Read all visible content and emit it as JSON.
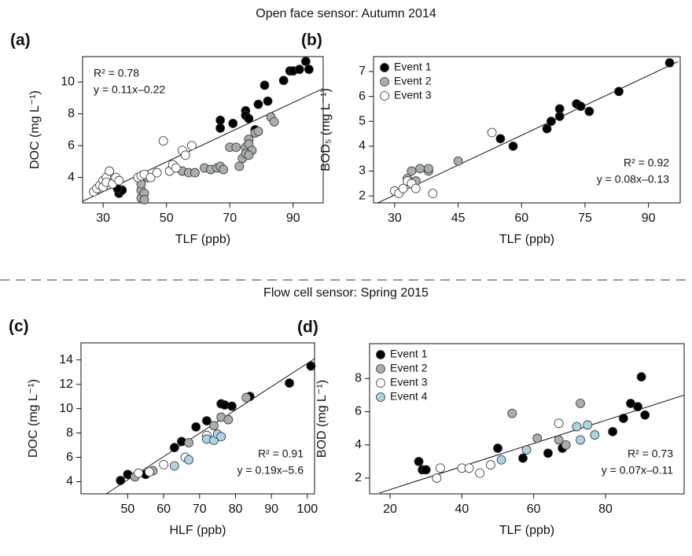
{
  "sections": [
    {
      "title": "Open face sensor: Autumn 2014"
    },
    {
      "title": "Flow cell sensor: Spring 2015"
    }
  ],
  "chart_data": [
    {
      "type": "scatter",
      "panel_label": "(a)",
      "xlabel": "TLF (ppb)",
      "ylabel": "DOC (mg L⁻¹)",
      "xlim": [
        23.5,
        99.5
      ],
      "ylim": [
        2.4,
        11.6
      ],
      "xticks": [
        30,
        50,
        70,
        90
      ],
      "yticks": [
        4,
        6,
        8,
        10
      ],
      "annotations": [
        "R² = 0.78",
        "y = 0.11x–0.22"
      ],
      "fit": {
        "x": [
          23.5,
          99.5
        ],
        "y": [
          2.5,
          9.6
        ]
      },
      "series": [
        {
          "color": "#000000",
          "x": [
            35,
            35,
            36,
            34.5,
            67,
            67,
            71,
            75,
            75,
            76,
            78,
            79,
            81,
            82,
            87,
            89,
            90,
            92,
            94,
            95
          ],
          "values": [
            3.1,
            3.0,
            3.2,
            3.3,
            7.1,
            7.6,
            7.4,
            8.2,
            7.9,
            7.7,
            7.0,
            8.6,
            9.8,
            8.8,
            10.1,
            10.7,
            10.7,
            10.8,
            11.3,
            10.8
          ]
        },
        {
          "color": "#a8aeaa",
          "x": [
            42,
            42,
            43,
            43,
            42,
            44,
            52,
            55,
            57,
            59,
            62,
            64,
            66,
            67,
            68,
            70,
            72,
            73,
            74,
            75,
            76,
            76,
            77,
            78,
            79,
            83,
            84,
            75,
            76
          ],
          "values": [
            2.7,
            3.2,
            3.0,
            2.6,
            3.6,
            4.0,
            4.6,
            4.4,
            4.3,
            4.3,
            4.6,
            4.5,
            4.6,
            4.7,
            4.5,
            5.9,
            5.9,
            4.7,
            5.2,
            5.9,
            6.4,
            6.1,
            5.7,
            6.8,
            6.9,
            7.8,
            7.5,
            5.5,
            5.4
          ]
        },
        {
          "color": "#ffffff",
          "x": [
            27,
            28,
            29,
            30,
            30,
            31,
            31,
            32,
            33,
            34,
            35,
            41,
            42,
            43,
            45,
            47,
            49,
            51,
            52,
            53,
            55,
            56,
            58
          ],
          "values": [
            3.1,
            3.3,
            3.5,
            3.8,
            3.4,
            4.0,
            3.7,
            4.4,
            3.6,
            4.0,
            3.8,
            4.0,
            4.1,
            4.2,
            4.0,
            4.3,
            6.3,
            4.4,
            4.8,
            4.6,
            5.7,
            5.4,
            6.0
          ]
        }
      ]
    },
    {
      "type": "scatter",
      "panel_label": "(b)",
      "xlabel": "TLF (ppb)",
      "ylabel": "BOD₅ (mg L⁻¹)",
      "xlim": [
        25,
        97.5
      ],
      "ylim": [
        1.72,
        7.6
      ],
      "xticks": [
        30,
        45,
        60,
        75,
        90
      ],
      "yticks": [
        2,
        3,
        4,
        5,
        6,
        7
      ],
      "legend": "upper left",
      "annotations": [
        "R² = 0.92",
        "y = 0.08x–0.13"
      ],
      "fit": {
        "x": [
          26,
          97
        ],
        "y": [
          1.72,
          7.4
        ]
      },
      "series": [
        {
          "name": "Event 1",
          "color": "#000000",
          "x": [
            55,
            58,
            66,
            67,
            69,
            69,
            73,
            74,
            76,
            83,
            95
          ],
          "values": [
            4.3,
            4.0,
            4.7,
            5.0,
            5.2,
            5.5,
            5.7,
            5.6,
            5.4,
            6.2,
            7.35
          ]
        },
        {
          "name": "Event 2",
          "color": "#a8aeaa",
          "x": [
            33,
            34,
            35,
            36,
            38,
            38,
            45
          ],
          "values": [
            2.7,
            3.0,
            2.6,
            3.1,
            3.0,
            3.1,
            3.4
          ]
        },
        {
          "name": "Event 3",
          "color": "#ffffff",
          "x": [
            30,
            31,
            32,
            33,
            34,
            35,
            39,
            53
          ],
          "values": [
            2.2,
            2.1,
            2.3,
            2.6,
            2.5,
            2.3,
            2.1,
            4.55
          ]
        }
      ]
    },
    {
      "type": "scatter",
      "panel_label": "(c)",
      "xlabel": "HLF (ppb)",
      "ylabel": "DOC (mg L⁻¹)",
      "xlim": [
        37,
        102
      ],
      "ylim": [
        3,
        15.4
      ],
      "xticks": [
        50,
        60,
        70,
        80,
        90,
        100
      ],
      "yticks": [
        4,
        6,
        8,
        10,
        12,
        14
      ],
      "annotations": [
        "R² = 0.91",
        "y = 0.19x–5.6"
      ],
      "fit": {
        "x": [
          44,
          102
        ],
        "y": [
          3,
          14.1
        ]
      },
      "series": [
        {
          "color": "#000000",
          "x": [
            48,
            50,
            55,
            63,
            65,
            69,
            72,
            76,
            77,
            79,
            84,
            95,
            101
          ],
          "values": [
            4.1,
            4.6,
            4.6,
            6.8,
            7.3,
            8.5,
            9.0,
            10.4,
            10.3,
            10.2,
            11.0,
            12.1,
            13.5
          ]
        },
        {
          "color": "#a8aeaa",
          "x": [
            52,
            57,
            67,
            74,
            76,
            78,
            83
          ],
          "values": [
            4.4,
            4.9,
            7.2,
            8.6,
            9.3,
            9.1,
            10.9
          ]
        },
        {
          "color": "#ffffff",
          "x": [
            53,
            56,
            60,
            66,
            72
          ],
          "values": [
            4.7,
            4.8,
            5.4,
            6.0,
            7.8
          ]
        },
        {
          "color": "#a9d3e6",
          "x": [
            63,
            67,
            72,
            74,
            75,
            76
          ],
          "values": [
            5.3,
            5.8,
            7.5,
            7.4,
            7.9,
            7.7
          ]
        }
      ]
    },
    {
      "type": "scatter",
      "panel_label": "(d)",
      "xlabel": "TLF (ppb)",
      "ylabel": "BOD (mg L⁻¹)",
      "xlim": [
        14.3,
        101.9
      ],
      "ylim": [
        1.05,
        10.1
      ],
      "xticks": [
        20,
        40,
        60,
        80
      ],
      "yticks": [
        2,
        4,
        6,
        8
      ],
      "legend": "upper left",
      "annotations": [
        "R² = 0.73",
        "y = 0.07x–0.11"
      ],
      "fit": {
        "x": [
          17,
          101.9
        ],
        "y": [
          1.1,
          7.0
        ]
      },
      "series": [
        {
          "name": "Event 1",
          "color": "#000000",
          "x": [
            28,
            29,
            30,
            50,
            57,
            64,
            68,
            82,
            85,
            87,
            89,
            90,
            91
          ],
          "values": [
            3.0,
            2.5,
            2.5,
            3.8,
            3.2,
            3.5,
            3.8,
            4.8,
            5.6,
            6.5,
            6.3,
            8.1,
            5.8
          ]
        },
        {
          "name": "Event 2",
          "color": "#a8aeaa",
          "x": [
            54,
            61,
            67,
            69,
            73
          ],
          "values": [
            5.9,
            4.4,
            4.3,
            4.0,
            6.5
          ]
        },
        {
          "name": "Event 3",
          "color": "#ffffff",
          "x": [
            33,
            34,
            40,
            42,
            45,
            48,
            67
          ],
          "values": [
            2.0,
            2.6,
            2.6,
            2.6,
            2.3,
            2.8,
            5.3
          ]
        },
        {
          "name": "Event 4",
          "color": "#a9d3e6",
          "x": [
            51,
            58,
            72,
            73,
            75,
            77
          ],
          "values": [
            3.1,
            3.7,
            5.1,
            4.3,
            5.2,
            4.6
          ]
        }
      ]
    }
  ]
}
